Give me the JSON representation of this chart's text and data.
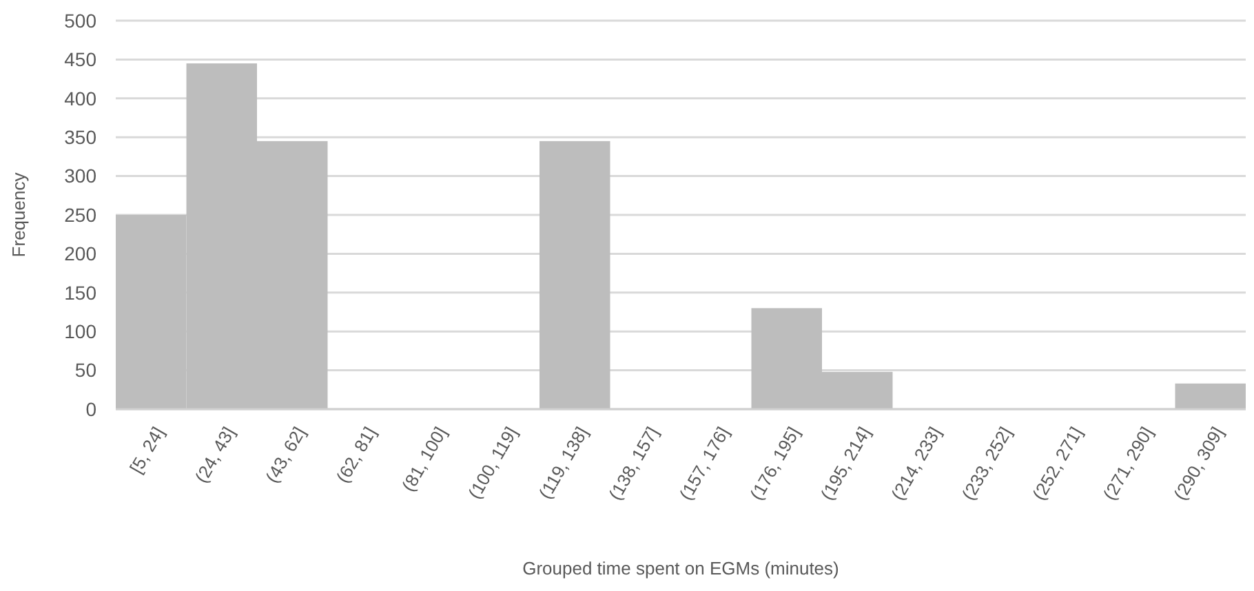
{
  "chart_data": {
    "type": "bar",
    "xlabel": "Grouped time spent on EGMs (minutes)",
    "ylabel": "Frequency",
    "categories": [
      "[5, 24]",
      "(24, 43]",
      "(43, 62]",
      "(62, 81]",
      "(81, 100]",
      "(100, 119]",
      "(119, 138]",
      "(138, 157]",
      "(157, 176]",
      "(176, 195]",
      "(195, 214]",
      "(214, 233]",
      "(233, 252]",
      "(252, 271]",
      "(271, 290]",
      "(290, 309]"
    ],
    "values": [
      250,
      445,
      345,
      0,
      0,
      0,
      345,
      0,
      0,
      130,
      48,
      0,
      0,
      0,
      0,
      33
    ],
    "color": "#bdbdbd",
    "ylim": [
      0,
      500
    ],
    "yticks": [
      0,
      50,
      100,
      150,
      200,
      250,
      300,
      350,
      400,
      450,
      500
    ],
    "grid": "y"
  }
}
